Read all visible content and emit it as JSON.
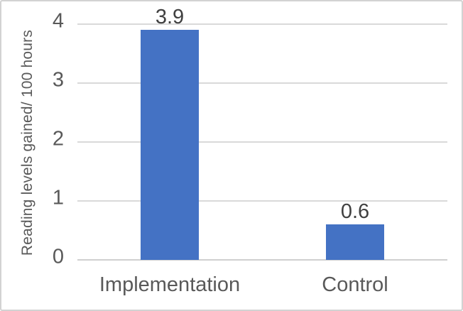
{
  "chart_data": {
    "type": "bar",
    "categories": [
      "Implementation",
      "Control"
    ],
    "values": [
      3.9,
      0.6
    ],
    "data_labels": [
      "3.9",
      "0.6"
    ],
    "title": "",
    "xlabel": "",
    "ylabel": "Reading levels gained/ 100 hours",
    "ylim": [
      0,
      4
    ],
    "yticks": [
      "0",
      "1",
      "2",
      "3",
      "4"
    ],
    "grid": true,
    "legend": false,
    "bar_color": "#4472C4",
    "gridline_color": "#D9D9D9",
    "axis_line_color": "#CFCFCF",
    "tick_label_color": "#595959",
    "category_label_color": "#595959",
    "data_label_color": "#404040",
    "frame_border_color": "#D2D2D2"
  }
}
